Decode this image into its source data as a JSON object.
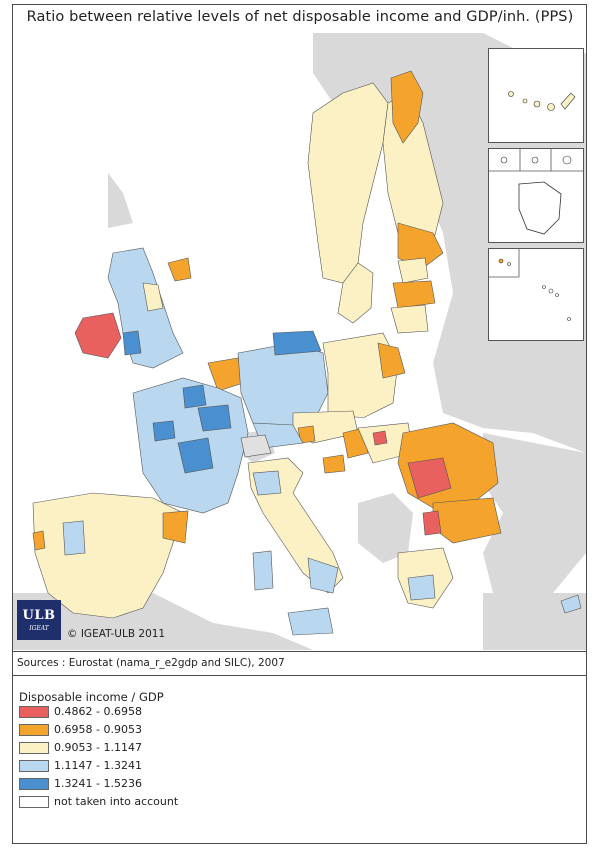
{
  "title": "Ratio between relative levels of net disposable income and GDP/inh. (PPS)",
  "logo": {
    "main": "ULB",
    "sub": "IGEAT"
  },
  "copyright": "© IGEAT-ULB 2011",
  "sources": "Sources : Eurostat (nama_r_e2gdp and SILC), 2007",
  "legend": {
    "title": "Disposable income / GDP",
    "classes": [
      {
        "label": "0.4862 - 0.6958",
        "color": "#e8615e"
      },
      {
        "label": "0.6958 - 0.9053",
        "color": "#f4a42d"
      },
      {
        "label": "0.9053 - 1.1147",
        "color": "#fcf1c5"
      },
      {
        "label": "1.1147 - 1.3241",
        "color": "#b9d7ef"
      },
      {
        "label": "1.3241 - 1.5236",
        "color": "#4a8fcf"
      },
      {
        "label": "not taken into account",
        "color": "#ffffff"
      }
    ]
  },
  "colors": {
    "background_land": "#d9d9d9",
    "border": "#555555"
  }
}
